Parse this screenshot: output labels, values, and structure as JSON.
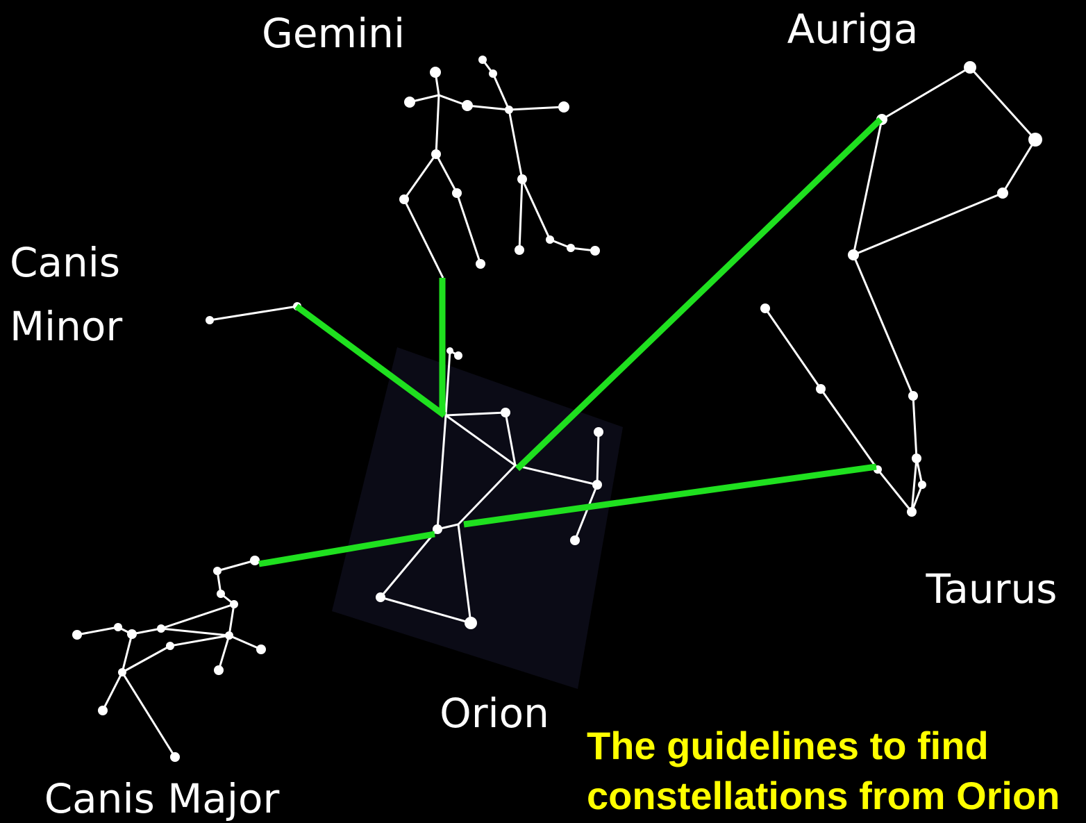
{
  "labels": {
    "gemini": "Gemini",
    "auriga": "Auriga",
    "canis_minor": [
      "Canis",
      "Minor"
    ],
    "taurus": "Taurus",
    "orion": "Orion",
    "canis_major": "Canis Major"
  },
  "caption": [
    "The guidelines to find",
    "constellations from Orion"
  ]
}
